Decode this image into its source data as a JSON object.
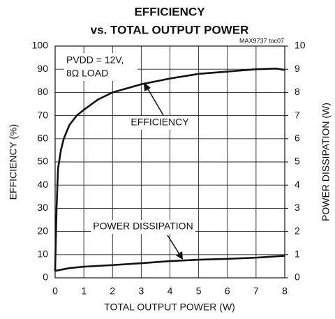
{
  "chart_data": {
    "type": "line",
    "title": "EFFICIENCY",
    "subtitle": "vs. TOTAL OUTPUT POWER",
    "note": "MAX9737 toc07",
    "x_label": "TOTAL OUTPUT POWER (W)",
    "y_label": "EFFICIENCY (%)",
    "y2_label": "POWER DISSIPATION (W)",
    "annotations": [
      "PVDD = 12V,",
      "8Ω LOAD",
      "EFFICIENCY",
      "POWER DISSIPATION"
    ],
    "xlim": [
      0,
      8
    ],
    "xticks": [
      0,
      1,
      2,
      3,
      4,
      5,
      6,
      7,
      8
    ],
    "ylim": [
      0,
      100
    ],
    "yticks": [
      0,
      10,
      20,
      30,
      40,
      50,
      60,
      70,
      80,
      90,
      100
    ],
    "y2lim": [
      0,
      10
    ],
    "y2ticks": [
      0,
      1,
      2,
      3,
      4,
      5,
      6,
      7,
      8,
      9,
      10
    ],
    "grid": true,
    "series": [
      {
        "name": "EFFICIENCY",
        "color": "#111111",
        "x": [
          0,
          0.05,
          0.1,
          0.2,
          0.3,
          0.5,
          0.75,
          1,
          1.5,
          2,
          3,
          4,
          5,
          6,
          7,
          7.7,
          8
        ],
        "values": [
          3,
          30,
          47,
          55,
          60,
          66,
          70,
          72.5,
          77,
          80,
          83.5,
          86,
          88,
          89,
          90,
          90.3,
          89.7
        ]
      },
      {
        "name": "POWER DISSIPATION",
        "color": "#111111",
        "axis": "y2",
        "x": [
          0,
          0.5,
          1,
          2,
          3,
          4,
          5,
          6,
          7,
          8
        ],
        "values": [
          0.3,
          0.42,
          0.48,
          0.55,
          0.63,
          0.72,
          0.78,
          0.82,
          0.87,
          0.95
        ]
      }
    ]
  }
}
